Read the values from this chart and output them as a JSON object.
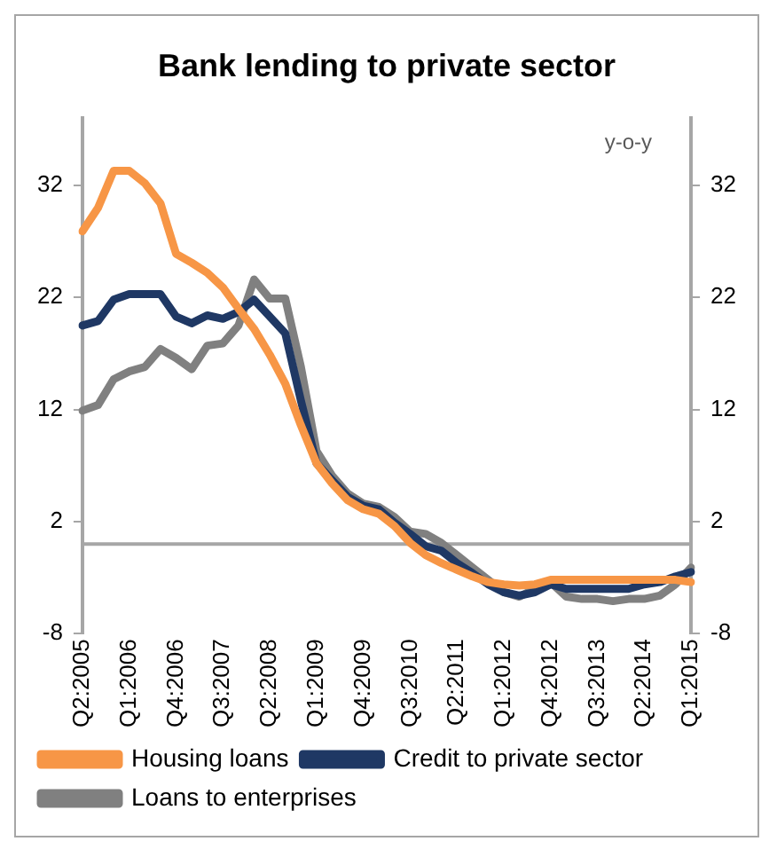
{
  "chart_data": {
    "type": "line",
    "title": "Bank lending to private sector",
    "categories": [
      "Q2:2005",
      null,
      null,
      "Q1:2006",
      null,
      null,
      "Q4:2006",
      null,
      null,
      "Q3:2007",
      null,
      null,
      "Q2:2008",
      null,
      null,
      "Q1:2009",
      null,
      null,
      "Q4:2009",
      null,
      null,
      "Q3:2010",
      null,
      null,
      "Q2:2011",
      null,
      null,
      "Q1:2012",
      null,
      null,
      "Q4:2012",
      null,
      null,
      "Q3:2013",
      null,
      null,
      "Q2:2014",
      null,
      null,
      "Q1:2015"
    ],
    "series": [
      {
        "name": "Housing loans",
        "color": "#f79646",
        "values": [
          27.9,
          30,
          33.3,
          33.3,
          32.2,
          30.4,
          25.9,
          25.1,
          24.2,
          22.9,
          21,
          19.2,
          16.9,
          14.3,
          10.6,
          7.2,
          5.4,
          3.9,
          3.1,
          2.7,
          1.6,
          0.1,
          -1,
          -1.7,
          -2.3,
          -2.9,
          -3.4,
          -3.6,
          -3.7,
          -3.6,
          -3.2,
          -3.2,
          -3.2,
          -3.2,
          -3.2,
          -3.2,
          -3.2,
          -3.2,
          -3.2,
          -3.4
        ]
      },
      {
        "name": "Credit to private sector",
        "color": "#1f3864",
        "values": [
          19.5,
          19.9,
          21.8,
          22.3,
          22.3,
          22.3,
          20.3,
          19.7,
          20.4,
          20.1,
          20.7,
          21.8,
          20.3,
          18.8,
          12.8,
          7.2,
          5.7,
          4.2,
          3.4,
          3.1,
          1.9,
          0.9,
          -0.2,
          -0.6,
          -1.7,
          -2.6,
          -3.6,
          -4.3,
          -4.6,
          -4.3,
          -3.6,
          -4,
          -4,
          -4,
          -4,
          -4,
          -3.6,
          -3.4,
          -2.9,
          -2.5
        ]
      },
      {
        "name": "Loans to enterprises",
        "color": "#808080",
        "values": [
          11.9,
          12.4,
          14.7,
          15.4,
          15.8,
          17.4,
          16.6,
          15.6,
          17.7,
          17.9,
          19.5,
          23.6,
          21.9,
          21.9,
          15.8,
          8.3,
          6.1,
          4.5,
          3.6,
          3.3,
          2.4,
          1.1,
          0.9,
          0.1,
          -1,
          -2.1,
          -3.2,
          -4.3,
          -4.7,
          -4,
          -3.4,
          -4.7,
          -4.9,
          -4.9,
          -5.1,
          -4.9,
          -4.9,
          -4.6,
          -3.6,
          -2.1
        ]
      }
    ],
    "ylim": [
      -8,
      38
    ],
    "yticks": [
      -8,
      2,
      12,
      22,
      32
    ],
    "y2lim": [
      -8,
      38
    ],
    "y2ticks": [
      -8,
      2,
      12,
      22,
      32
    ],
    "ref_lines": [
      {
        "axis": "y",
        "value": 0,
        "color": "#a6a6a6"
      }
    ],
    "annotations": [
      "y-o-y"
    ],
    "grid": false,
    "legend": "bottom",
    "marker": "none",
    "line_style": "solid"
  }
}
